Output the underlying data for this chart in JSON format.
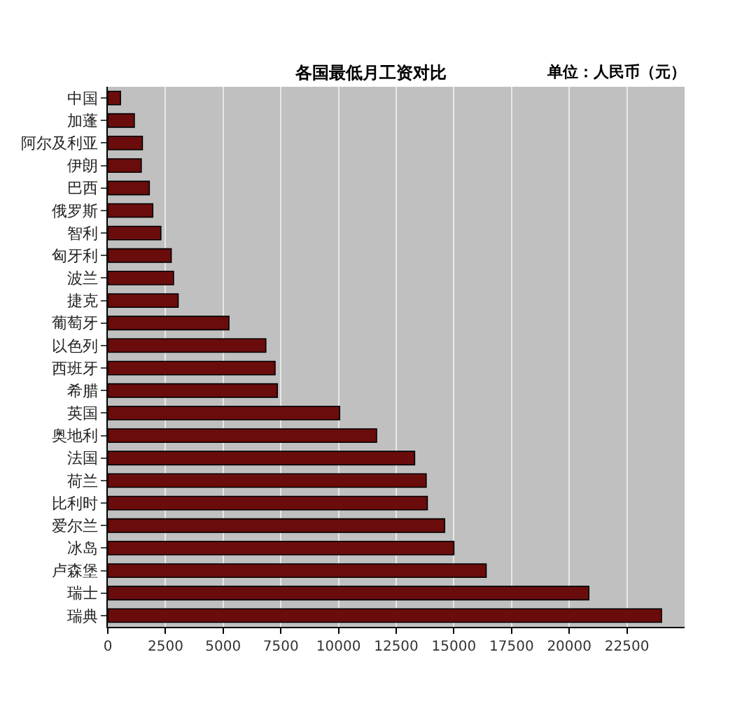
{
  "chart_data": {
    "type": "bar",
    "orientation": "horizontal",
    "title": "各国最低月工资对比",
    "annotations": [
      "单位：人民币（元）"
    ],
    "categories": [
      "中国",
      "加蓬",
      "阿尔及利亚",
      "伊朗",
      "巴西",
      "俄罗斯",
      "智利",
      "匈牙利",
      "波兰",
      "捷克",
      "葡萄牙",
      "以色列",
      "西班牙",
      "希腊",
      "英国",
      "奥地利",
      "法国",
      "荷兰",
      "比利时",
      "爱尔兰",
      "冰岛",
      "卢森堡",
      "瑞士",
      "瑞典"
    ],
    "values": [
      550,
      1150,
      1500,
      1450,
      1800,
      1950,
      2300,
      2750,
      2850,
      3050,
      5250,
      6850,
      7250,
      7350,
      10050,
      11650,
      13300,
      13800,
      13850,
      14600,
      15000,
      16400,
      20850,
      24000
    ],
    "color": "#6b0c0c",
    "xlim": [
      0,
      25000
    ],
    "xticks": [
      0,
      2500,
      5000,
      7500,
      10000,
      12500,
      15000,
      17500,
      20000,
      22500
    ],
    "grid": "x",
    "legend": false
  }
}
